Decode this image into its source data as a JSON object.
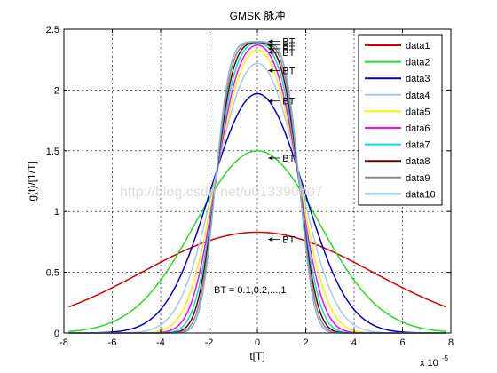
{
  "chart_data": {
    "type": "line",
    "title": "GMSK 脉冲",
    "xlabel": "t[T]",
    "ylabel": "g(t)/[1/T]",
    "x_exponent_label": "x 10",
    "x_exponent_power": "-5",
    "xlim": [
      -8,
      8
    ],
    "ylim": [
      0,
      2.5
    ],
    "x_scale_factor": "1e-5",
    "x_ticks": [
      "-8",
      "-6",
      "-4",
      "-2",
      "0",
      "2",
      "4",
      "6",
      "8"
    ],
    "y_ticks": [
      "0",
      "0.5",
      "1",
      "1.5",
      "2",
      "2.5"
    ],
    "grid": true,
    "legend_position": "top-right",
    "watermark": "http://blog.csdn.net/u013390007",
    "annotations": {
      "bt_label": "BT",
      "bt_range": "BT = 0.1,0.2,...,1"
    },
    "series": [
      {
        "name": "data1",
        "bt": 0.1,
        "color": "#d40000",
        "peak": 0.83
      },
      {
        "name": "data2",
        "bt": 0.2,
        "color": "#22dd22",
        "peak": 1.5
      },
      {
        "name": "data3",
        "bt": 0.3,
        "color": "#0000cc",
        "peak": 1.97
      },
      {
        "name": "data4",
        "bt": 0.4,
        "color": "#a8c8e8",
        "peak": 2.22
      },
      {
        "name": "data5",
        "bt": 0.5,
        "color": "#ffee00",
        "peak": 2.33
      },
      {
        "name": "data6",
        "bt": 0.6,
        "color": "#ff00ff",
        "peak": 2.37
      },
      {
        "name": "data7",
        "bt": 0.7,
        "color": "#00e0e0",
        "peak": 2.39
      },
      {
        "name": "data8",
        "bt": 0.8,
        "color": "#6b0000",
        "peak": 2.395
      },
      {
        "name": "data9",
        "bt": 0.9,
        "color": "#888888",
        "peak": 2.398
      },
      {
        "name": "data10",
        "bt": 1.0,
        "color": "#8ab0d8",
        "peak": 2.399
      }
    ]
  }
}
